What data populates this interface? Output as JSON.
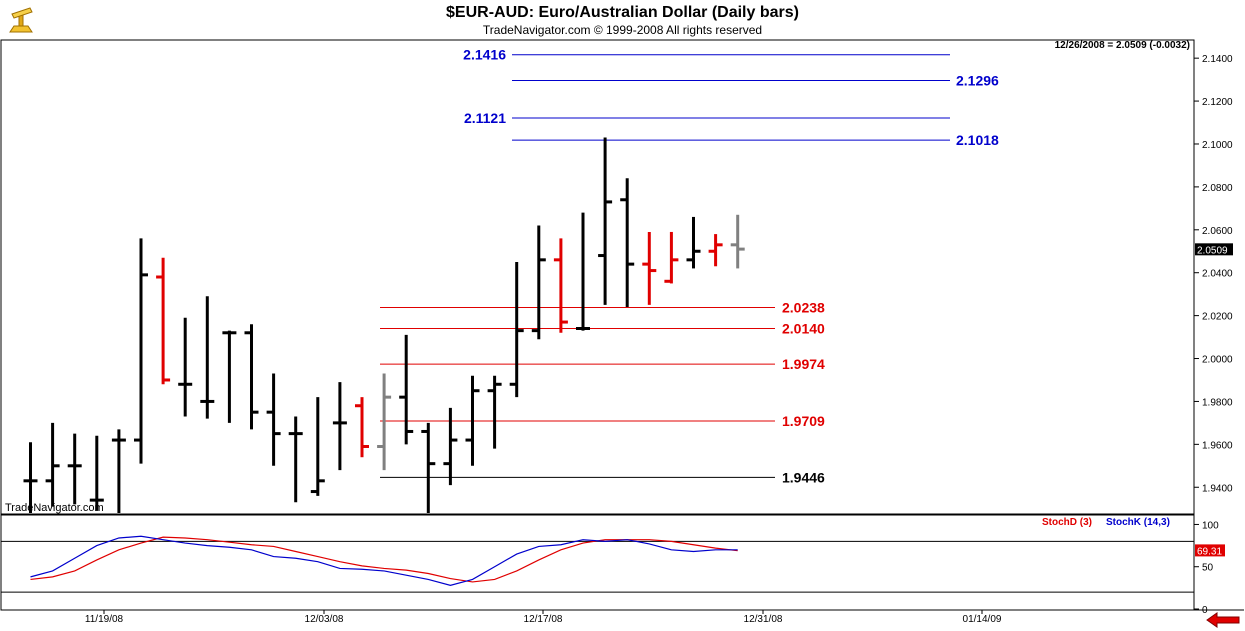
{
  "header": {
    "title": "$EUR-AUD:  Euro/Australian Dollar  (Daily bars)",
    "copyright": "TradeNavigator.com © 1999-2008 All rights reserved",
    "watermark": "TradeNavigator.com",
    "quote": "12/26/2008 = 2.0509 (-0.0032)"
  },
  "colors": {
    "up": "#000000",
    "down": "#e00000",
    "neutral": "#808080",
    "blue_level": "#0000cc",
    "red_level": "#e00000",
    "black_level": "#000000",
    "stochD": "#e00000",
    "stochK": "#0000cc"
  },
  "chart_data": [
    {
      "type": "bar",
      "subtype": "ohlc",
      "ylim": [
        1.928,
        2.148
      ],
      "yticks": [
        "2.1400",
        "2.1200",
        "2.1000",
        "2.0800",
        "2.0600",
        "2.0400",
        "2.0200",
        "2.0000",
        "1.9800",
        "1.9600",
        "1.9400"
      ],
      "xticks": [
        "11/19/08",
        "12/03/08",
        "12/17/08",
        "12/31/08",
        "01/14/09"
      ],
      "last_price_label": "2.0509",
      "bars": [
        {
          "o": 1.943,
          "h": 1.961,
          "l": 1.928,
          "c": 1.943,
          "clr": "up"
        },
        {
          "o": 1.943,
          "h": 1.97,
          "l": 1.931,
          "c": 1.95,
          "clr": "up"
        },
        {
          "o": 1.95,
          "h": 1.965,
          "l": 1.932,
          "c": 1.95,
          "clr": "up"
        },
        {
          "o": 1.934,
          "h": 1.964,
          "l": 1.929,
          "c": 1.934,
          "clr": "up"
        },
        {
          "o": 1.962,
          "h": 1.967,
          "l": 1.928,
          "c": 1.962,
          "clr": "up"
        },
        {
          "o": 1.962,
          "h": 2.056,
          "l": 1.951,
          "c": 2.039,
          "clr": "up"
        },
        {
          "o": 2.038,
          "h": 2.047,
          "l": 1.988,
          "c": 1.99,
          "clr": "down"
        },
        {
          "o": 1.988,
          "h": 2.019,
          "l": 1.973,
          "c": 1.988,
          "clr": "up"
        },
        {
          "o": 1.98,
          "h": 2.029,
          "l": 1.972,
          "c": 1.98,
          "clr": "up"
        },
        {
          "o": 2.012,
          "h": 2.013,
          "l": 1.97,
          "c": 2.012,
          "clr": "up"
        },
        {
          "o": 2.012,
          "h": 2.016,
          "l": 1.967,
          "c": 1.975,
          "clr": "up"
        },
        {
          "o": 1.975,
          "h": 1.993,
          "l": 1.95,
          "c": 1.965,
          "clr": "up"
        },
        {
          "o": 1.965,
          "h": 1.973,
          "l": 1.933,
          "c": 1.965,
          "clr": "up"
        },
        {
          "o": 1.938,
          "h": 1.982,
          "l": 1.936,
          "c": 1.943,
          "clr": "up"
        },
        {
          "o": 1.97,
          "h": 1.989,
          "l": 1.948,
          "c": 1.97,
          "clr": "up"
        },
        {
          "o": 1.978,
          "h": 1.982,
          "l": 1.954,
          "c": 1.959,
          "clr": "down"
        },
        {
          "o": 1.959,
          "h": 1.993,
          "l": 1.948,
          "c": 1.982,
          "clr": "neutral"
        },
        {
          "o": 1.982,
          "h": 2.011,
          "l": 1.96,
          "c": 1.966,
          "clr": "up"
        },
        {
          "o": 1.966,
          "h": 1.97,
          "l": 1.928,
          "c": 1.951,
          "clr": "up"
        },
        {
          "o": 1.951,
          "h": 1.977,
          "l": 1.941,
          "c": 1.962,
          "clr": "up"
        },
        {
          "o": 1.962,
          "h": 1.992,
          "l": 1.95,
          "c": 1.985,
          "clr": "up"
        },
        {
          "o": 1.985,
          "h": 1.992,
          "l": 1.958,
          "c": 1.988,
          "clr": "up"
        },
        {
          "o": 1.988,
          "h": 2.045,
          "l": 1.982,
          "c": 2.013,
          "clr": "up"
        },
        {
          "o": 2.013,
          "h": 2.062,
          "l": 2.009,
          "c": 2.046,
          "clr": "up"
        },
        {
          "o": 2.046,
          "h": 2.056,
          "l": 2.012,
          "c": 2.017,
          "clr": "down"
        },
        {
          "o": 2.014,
          "h": 2.068,
          "l": 2.013,
          "c": 2.014,
          "clr": "up"
        },
        {
          "o": 2.048,
          "h": 2.103,
          "l": 2.025,
          "c": 2.073,
          "clr": "up"
        },
        {
          "o": 2.074,
          "h": 2.084,
          "l": 2.024,
          "c": 2.044,
          "clr": "up"
        },
        {
          "o": 2.044,
          "h": 2.059,
          "l": 2.025,
          "c": 2.041,
          "clr": "down"
        },
        {
          "o": 2.036,
          "h": 2.059,
          "l": 2.035,
          "c": 2.046,
          "clr": "down"
        },
        {
          "o": 2.046,
          "h": 2.066,
          "l": 2.042,
          "c": 2.05,
          "clr": "up"
        },
        {
          "o": 2.05,
          "h": 2.058,
          "l": 2.043,
          "c": 2.053,
          "clr": "down"
        },
        {
          "o": 2.053,
          "h": 2.067,
          "l": 2.042,
          "c": 2.051,
          "clr": "neutral"
        }
      ],
      "levels": [
        {
          "label": "2.1416",
          "value": 2.1416,
          "color": "blue",
          "text_side": "left"
        },
        {
          "label": "2.1296",
          "value": 2.1296,
          "color": "blue",
          "text_side": "right"
        },
        {
          "label": "2.1121",
          "value": 2.1121,
          "color": "blue",
          "text_side": "left"
        },
        {
          "label": "2.1018",
          "value": 2.1018,
          "color": "blue",
          "text_side": "right"
        },
        {
          "label": "2.0238",
          "value": 2.0238,
          "color": "red",
          "text_side": "right"
        },
        {
          "label": "2.0140",
          "value": 2.014,
          "color": "red",
          "text_side": "right"
        },
        {
          "label": "1.9974",
          "value": 1.9974,
          "color": "red",
          "text_side": "right"
        },
        {
          "label": "1.9709",
          "value": 1.9709,
          "color": "red",
          "text_side": "right"
        },
        {
          "label": "1.9446",
          "value": 1.9446,
          "color": "black",
          "text_side": "right"
        }
      ]
    },
    {
      "type": "line",
      "ylim": [
        0,
        110
      ],
      "yticks": [
        "100",
        "50",
        "0"
      ],
      "guides": [
        20,
        80
      ],
      "last_value_label": "69.31",
      "legend": [
        "StochD (3)",
        "StochK (14,3)"
      ],
      "series": [
        {
          "name": "StochD (3)",
          "color": "red",
          "values": [
            35,
            38,
            45,
            58,
            70,
            78,
            85,
            84,
            82,
            79,
            76,
            74,
            68,
            62,
            56,
            51,
            48,
            46,
            42,
            36,
            32,
            35,
            45,
            58,
            70,
            78,
            82,
            82,
            82,
            80,
            76,
            72,
            69
          ]
        },
        {
          "name": "StochK (14,3)",
          "color": "blue",
          "values": [
            38,
            45,
            60,
            75,
            84,
            86,
            82,
            78,
            75,
            73,
            70,
            62,
            60,
            56,
            48,
            47,
            45,
            40,
            35,
            28,
            35,
            50,
            65,
            74,
            76,
            82,
            80,
            82,
            77,
            70,
            68,
            70,
            70
          ]
        }
      ]
    }
  ]
}
